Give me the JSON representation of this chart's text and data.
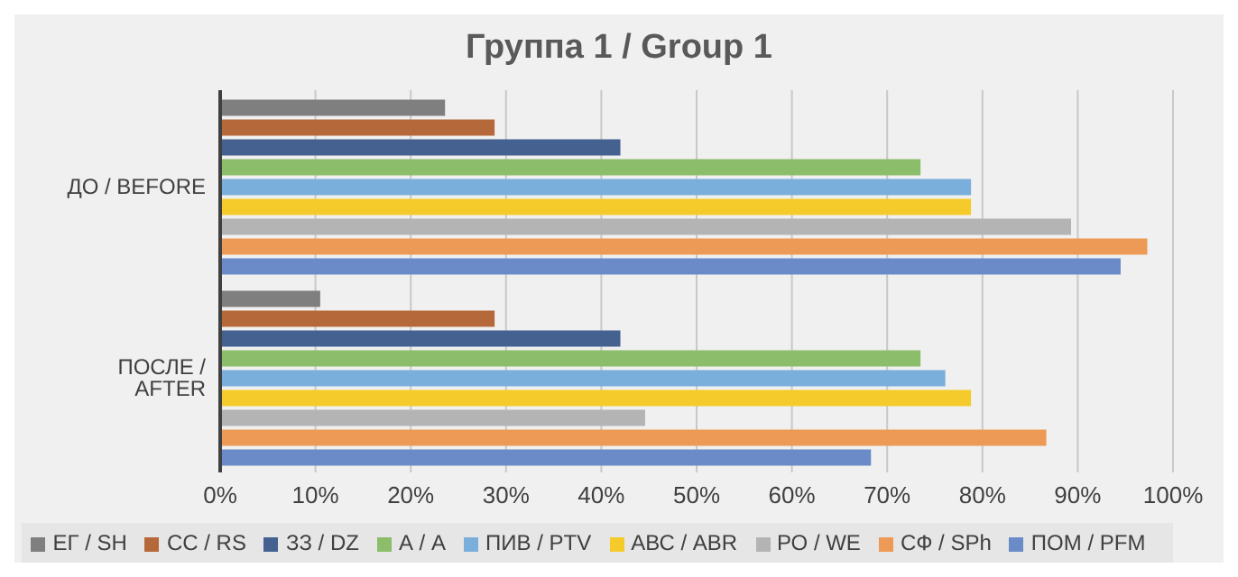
{
  "chart_data": {
    "type": "bar",
    "orientation": "horizontal",
    "title": "Группа 1 / Group 1",
    "categories": [
      "ДО / BEFORE",
      "ПОСЛЕ / AFTER"
    ],
    "series": [
      {
        "name": "ЕГ / SH",
        "color": "#7f7f7f",
        "values": [
          23.6,
          10.5
        ]
      },
      {
        "name": "СС / RS",
        "color": "#b5683a",
        "values": [
          28.8,
          28.8
        ]
      },
      {
        "name": "ЗЗ / DZ",
        "color": "#44618f",
        "values": [
          42,
          42
        ]
      },
      {
        "name": "А / А",
        "color": "#8cbd6a",
        "values": [
          73.5,
          73.5
        ]
      },
      {
        "name": "ПИВ / PTV",
        "color": "#7aaedb",
        "values": [
          78.8,
          76.1
        ]
      },
      {
        "name": "АВС / ABR",
        "color": "#f5cb2c",
        "values": [
          78.8,
          78.8
        ]
      },
      {
        "name": "РО / WE",
        "color": "#b4b4b4",
        "values": [
          89.3,
          44.6
        ]
      },
      {
        "name": "СФ / SPh",
        "color": "#ed9a56",
        "values": [
          97.3,
          86.7
        ]
      },
      {
        "name": "ПОМ / PFM",
        "color": "#6a8bc8",
        "values": [
          94.5,
          68.3
        ]
      }
    ],
    "xlim": [
      0,
      100
    ],
    "xticks": [
      {
        "value": 0,
        "label": "0%"
      },
      {
        "value": 10,
        "label": "10%"
      },
      {
        "value": 20,
        "label": "20%"
      },
      {
        "value": 30,
        "label": "30%"
      },
      {
        "value": 40,
        "label": "40%"
      },
      {
        "value": 50,
        "label": "50%"
      },
      {
        "value": 60,
        "label": "60%"
      },
      {
        "value": 70,
        "label": "70%"
      },
      {
        "value": 80,
        "label": "80%"
      },
      {
        "value": 90,
        "label": "90%"
      },
      {
        "value": 100,
        "label": "100%"
      }
    ],
    "grid": "x",
    "legend": "bottom"
  }
}
